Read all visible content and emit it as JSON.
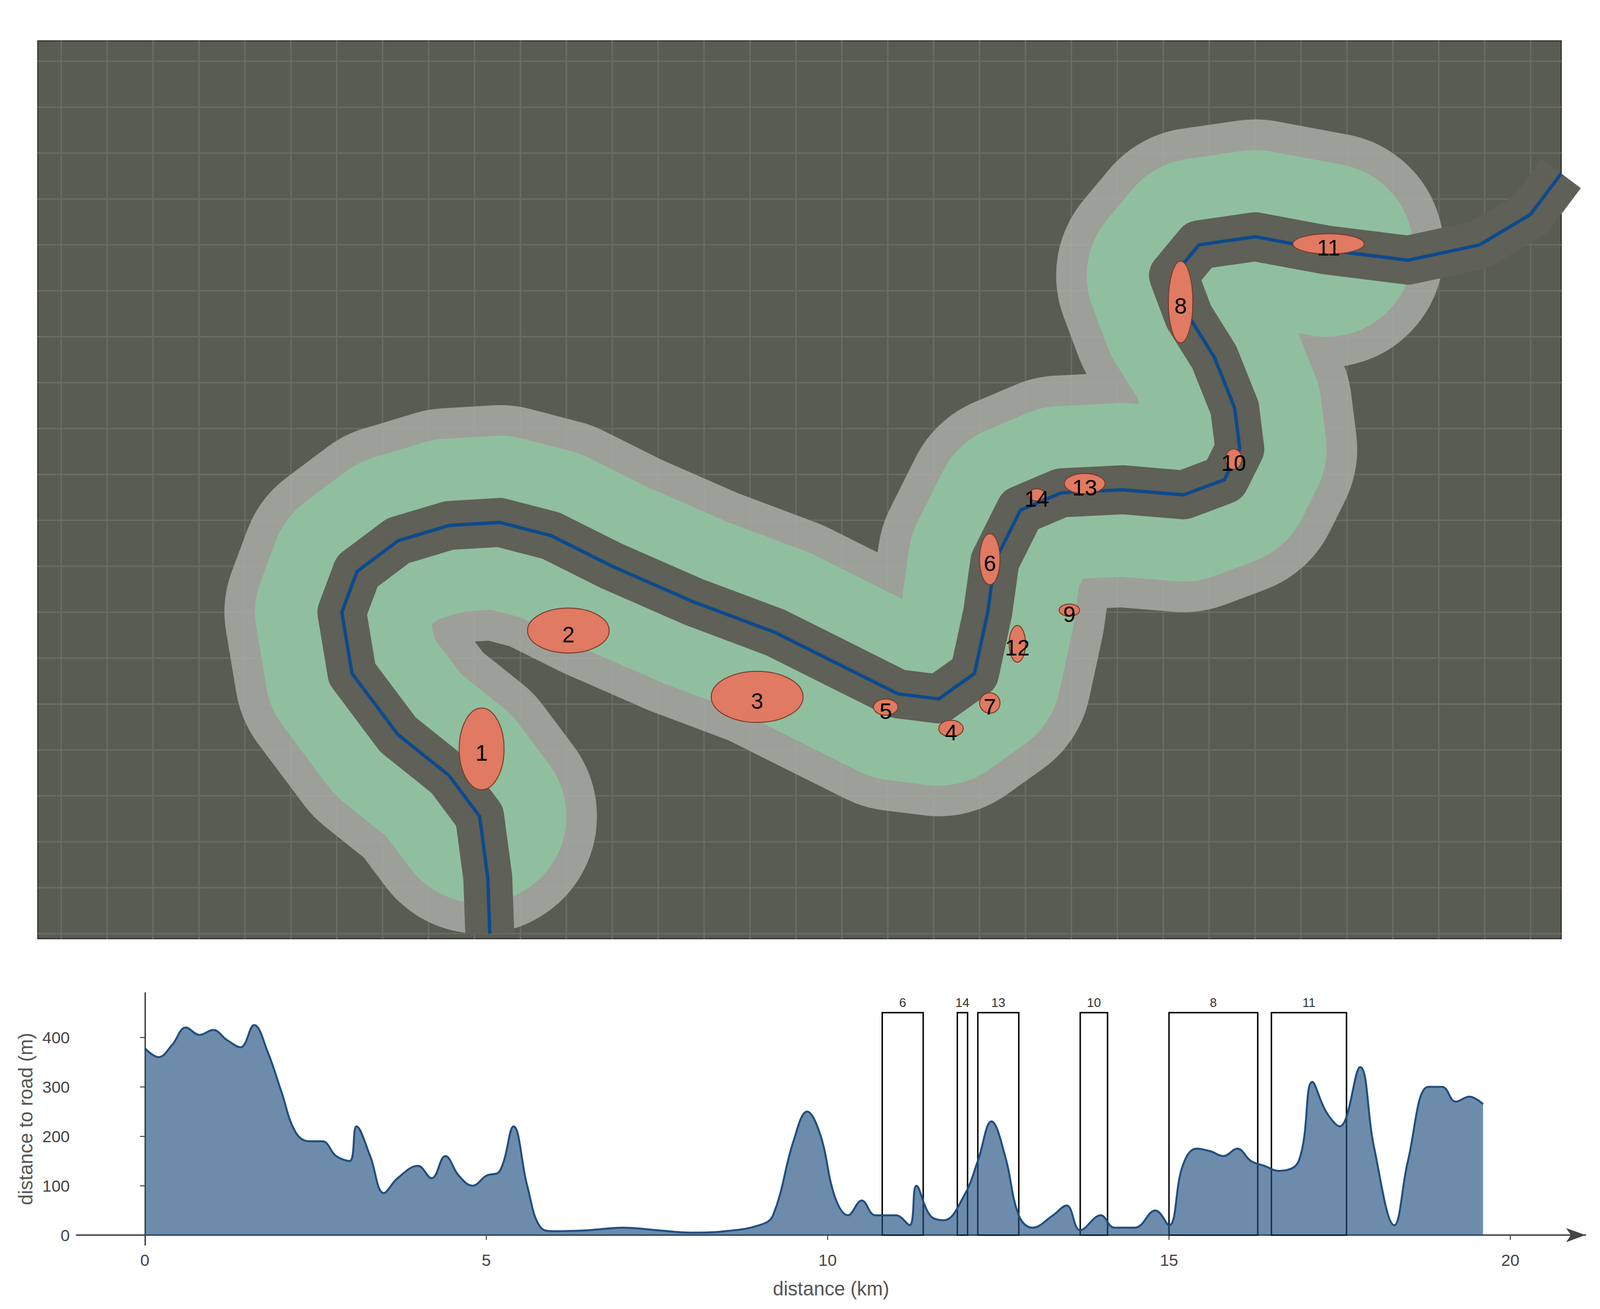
{
  "map": {
    "labels": [
      "1",
      "2",
      "3",
      "4",
      "5",
      "6",
      "7",
      "8",
      "9",
      "10",
      "11",
      "12",
      "13",
      "14"
    ]
  },
  "chart_data": {
    "type": "area",
    "x_label": "distance (km)",
    "y_label": "distance to road (m)",
    "x": [
      0,
      0.2,
      0.4,
      0.6,
      0.8,
      1.0,
      1.2,
      1.4,
      1.6,
      1.8,
      2.0,
      2.2,
      2.4,
      2.6,
      2.8,
      3.0,
      3.1,
      3.3,
      3.5,
      3.7,
      4.0,
      4.2,
      4.4,
      4.6,
      4.8,
      5.0,
      5.2,
      5.4,
      5.6,
      5.8,
      6.0,
      6.5,
      7.0,
      7.5,
      8.0,
      8.5,
      9.0,
      9.2,
      9.5,
      9.7,
      9.9,
      10.1,
      10.3,
      10.5,
      10.7,
      11.0,
      11.2,
      11.3,
      11.5,
      11.7,
      12.0,
      12.2,
      12.4,
      12.6,
      12.8,
      13.0,
      13.3,
      13.5,
      13.7,
      14.0,
      14.2,
      14.5,
      14.8,
      15.0,
      15.2,
      15.4,
      15.6,
      15.8,
      16.0,
      16.2,
      16.4,
      16.6,
      16.9,
      17.1,
      17.3,
      17.5,
      17.8,
      18.0,
      18.3,
      18.5,
      18.8,
      19.0,
      19.2,
      19.4,
      19.6
    ],
    "values": [
      378,
      360,
      385,
      420,
      405,
      415,
      395,
      380,
      425,
      370,
      290,
      210,
      190,
      190,
      160,
      150,
      220,
      160,
      85,
      115,
      140,
      115,
      160,
      120,
      100,
      120,
      130,
      220,
      100,
      15,
      8,
      10,
      15,
      10,
      5,
      8,
      20,
      40,
      190,
      250,
      200,
      80,
      40,
      70,
      40,
      40,
      20,
      100,
      40,
      30,
      80,
      150,
      230,
      160,
      40,
      15,
      40,
      60,
      10,
      40,
      15,
      15,
      50,
      20,
      140,
      175,
      170,
      160,
      175,
      150,
      140,
      130,
      150,
      310,
      250,
      220,
      340,
      180,
      20,
      150,
      300,
      300,
      270,
      280,
      265
    ],
    "color": "#1f4e80",
    "xlim": [
      -1,
      21.1
    ],
    "ylim": [
      -20,
      490
    ],
    "xticks": [
      0,
      5,
      10,
      15,
      20
    ],
    "yticks": [
      0,
      100,
      200,
      300,
      400
    ],
    "grid": false,
    "regions": [
      {
        "label": "6",
        "x": [
          10.8,
          11.4
        ],
        "y": [
          0,
          450
        ]
      },
      {
        "label": "14",
        "x": [
          11.9,
          12.05
        ],
        "y": [
          0,
          450
        ]
      },
      {
        "label": "13",
        "x": [
          12.2,
          12.8
        ],
        "y": [
          0,
          450
        ]
      },
      {
        "label": "10",
        "x": [
          13.7,
          14.1
        ],
        "y": [
          0,
          450
        ]
      },
      {
        "label": "8",
        "x": [
          15.0,
          16.3
        ],
        "y": [
          0,
          450
        ]
      },
      {
        "label": "11",
        "x": [
          16.5,
          17.6
        ],
        "y": [
          0,
          450
        ]
      }
    ]
  }
}
